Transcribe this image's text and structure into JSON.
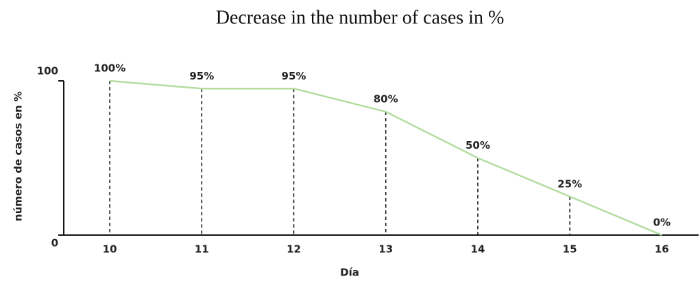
{
  "chart_data": {
    "type": "line",
    "title": "Decrease in the number of cases in %",
    "xlabel": "Día",
    "ylabel": "número de casos en %",
    "x": [
      10,
      11,
      12,
      13,
      14,
      15,
      16
    ],
    "series": [
      {
        "color": "#b3dd9f",
        "values": [
          100,
          95,
          95,
          80,
          50,
          25,
          0
        ],
        "value_labels": [
          "100%",
          "95%",
          "95%",
          "80%",
          "50%",
          "25%",
          "0%"
        ]
      }
    ],
    "xlim": [
      9.5,
      16.4
    ],
    "xticks": [
      10,
      11,
      12,
      13,
      14,
      15,
      16
    ],
    "ylim": [
      0,
      100
    ],
    "yticks": [
      0,
      100
    ],
    "drop_lines": true
  }
}
